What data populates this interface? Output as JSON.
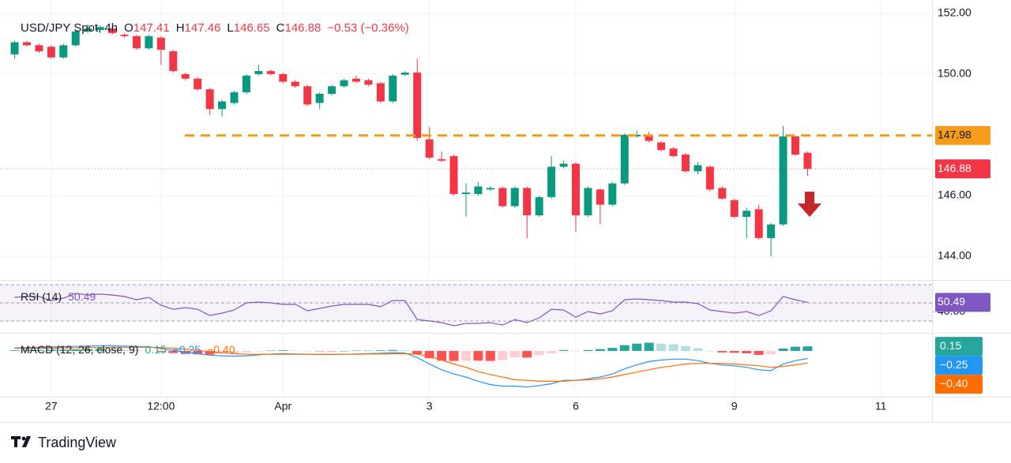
{
  "chart_data": {
    "type": "candlestick",
    "title": "USD/JPY Spot, 4h",
    "ohlc_letters": [
      "O",
      "H",
      "L",
      "C"
    ],
    "change": "−0.53 (−0.36%)",
    "x": [
      0,
      1,
      2,
      3,
      4,
      5,
      6,
      7,
      8,
      9,
      10,
      11,
      12,
      13,
      14,
      15,
      16,
      17,
      18,
      19,
      20,
      21,
      22,
      23,
      24,
      25,
      26,
      27,
      28,
      29,
      30,
      31,
      32,
      33,
      34,
      35,
      36,
      37,
      38,
      39,
      40,
      41,
      42,
      43,
      44,
      45,
      46,
      47,
      48,
      49,
      50,
      51,
      52,
      53,
      54,
      55,
      56,
      57,
      58,
      59,
      60,
      61,
      62,
      63,
      64,
      65
    ],
    "xlim": [
      -1.2,
      75.2
    ],
    "xticks": [
      {
        "value": 3,
        "label": "27"
      },
      {
        "value": 12,
        "label": "12:00"
      },
      {
        "value": 22,
        "label": "Apr"
      },
      {
        "value": 34,
        "label": "3"
      },
      {
        "value": 46,
        "label": "6"
      },
      {
        "value": 59,
        "label": "9"
      },
      {
        "value": 71,
        "label": "11"
      }
    ],
    "open": [
      150.65,
      151.05,
      150.95,
      150.9,
      150.55,
      150.95,
      151.4,
      151.45,
      151.5,
      151.3,
      151.25,
      150.85,
      151.2,
      150.75,
      150.0,
      149.85,
      149.5,
      148.85,
      149.05,
      149.4,
      150.0,
      150.1,
      150.0,
      149.75,
      149.6,
      149.05,
      149.35,
      149.6,
      149.85,
      149.8,
      149.7,
      149.1,
      149.98,
      150.05,
      147.85,
      147.2,
      147.3,
      146.05,
      146.05,
      146.2,
      146.25,
      145.65,
      146.25,
      145.35,
      145.95,
      146.95,
      147.05,
      145.35,
      146.2,
      145.7,
      146.4,
      147.95,
      148.0,
      147.75,
      147.55,
      147.35,
      146.8,
      146.95,
      146.25,
      145.85,
      145.3,
      145.55,
      144.6,
      145.05,
      147.95,
      147.41
    ],
    "high": [
      151.1,
      151.1,
      151.0,
      150.95,
      151.0,
      151.45,
      151.65,
      151.6,
      151.55,
      151.35,
      151.3,
      151.3,
      151.25,
      150.8,
      150.05,
      149.9,
      149.55,
      149.15,
      149.45,
      150.0,
      150.3,
      150.15,
      150.05,
      149.8,
      149.65,
      149.4,
      149.65,
      149.85,
      149.95,
      149.85,
      149.75,
      150.0,
      150.1,
      150.5,
      148.25,
      147.45,
      147.35,
      146.4,
      146.45,
      146.3,
      146.3,
      146.3,
      146.3,
      146.0,
      147.3,
      147.15,
      147.1,
      146.3,
      146.25,
      146.45,
      148.05,
      148.15,
      148.1,
      147.8,
      147.6,
      147.4,
      147.1,
      147.0,
      146.3,
      145.9,
      145.6,
      145.7,
      145.1,
      148.3,
      147.95,
      147.46
    ],
    "low": [
      150.5,
      150.9,
      150.7,
      150.5,
      150.5,
      150.9,
      151.35,
      151.4,
      151.3,
      151.2,
      150.8,
      150.8,
      150.3,
      150.05,
      149.8,
      149.45,
      148.65,
      148.6,
      149.0,
      149.35,
      149.95,
      149.95,
      149.7,
      149.55,
      148.95,
      148.85,
      149.3,
      149.55,
      149.7,
      149.6,
      149.05,
      149.05,
      149.95,
      147.8,
      147.2,
      147.1,
      146.0,
      145.3,
      146.0,
      146.15,
      145.6,
      145.6,
      144.6,
      145.3,
      145.9,
      146.9,
      144.8,
      145.3,
      145.05,
      145.65,
      146.35,
      147.9,
      147.75,
      147.45,
      147.25,
      146.75,
      146.7,
      146.15,
      145.85,
      145.25,
      144.6,
      144.55,
      144.0,
      145.0,
      147.3,
      146.65
    ],
    "close": [
      151.05,
      150.95,
      150.75,
      150.55,
      150.95,
      151.4,
      151.5,
      151.55,
      151.35,
      151.25,
      150.85,
      151.25,
      150.8,
      150.1,
      149.85,
      149.5,
      148.85,
      149.1,
      149.4,
      149.95,
      150.1,
      150.0,
      149.75,
      149.6,
      149.0,
      149.35,
      149.6,
      149.8,
      149.75,
      149.65,
      149.1,
      149.95,
      150.05,
      147.9,
      147.25,
      147.15,
      146.05,
      146.1,
      146.3,
      146.25,
      145.65,
      146.25,
      145.35,
      145.95,
      146.95,
      147.05,
      145.35,
      146.25,
      145.7,
      146.4,
      148.0,
      148.0,
      147.8,
      147.5,
      147.3,
      146.8,
      147.0,
      146.2,
      145.9,
      145.3,
      145.5,
      144.6,
      145.05,
      147.95,
      147.35,
      146.88
    ],
    "up_color": "#089981",
    "down_color": "#f23645",
    "ylim": [
      143.22,
      152.44
    ],
    "yticks": [
      {
        "value": 144,
        "label": "144.00"
      },
      {
        "value": 146,
        "label": "146.00"
      },
      {
        "value": 150,
        "label": "150.00"
      },
      {
        "value": 152,
        "label": "152.00"
      }
    ],
    "grid": true,
    "resistance": {
      "value": 147.98,
      "color": "#f59c1a"
    },
    "rsi": {
      "name": "RSI (14)",
      "color": "#7e57c2",
      "values": [
        56.1,
        57,
        57,
        52.6,
        55.2,
        60.4,
        58.7,
        59.6,
        58.7,
        57,
        53.5,
        56.1,
        47.4,
        43,
        44.8,
        43,
        36.1,
        38.7,
        42.2,
        50,
        50.9,
        50,
        48.3,
        48.3,
        41.3,
        43.9,
        46.5,
        48.3,
        48.3,
        48.3,
        45.7,
        52.6,
        52.6,
        31.7,
        30,
        28.3,
        24.8,
        27.4,
        27.4,
        28.3,
        25.7,
        31.7,
        28.3,
        33.5,
        43,
        42.2,
        34.3,
        40.4,
        37.8,
        41.3,
        53.5,
        54.3,
        53.5,
        52.6,
        50.9,
        50.9,
        49.1,
        42.2,
        40.4,
        38.7,
        40.4,
        36.1,
        41.3,
        57,
        53.5,
        50.49
      ],
      "ylim": [
        17,
        74.3
      ],
      "yticks": [
        {
          "value": 40,
          "label": "40.00"
        }
      ],
      "bands": [
        70,
        50,
        30
      ]
    },
    "macd": {
      "name": "MACD (12, 26, close, 9)",
      "ylim": [
        -1.51,
        0.57
      ],
      "histogram": {
        "colors": [
          "#26a69a",
          "#b2dfdb",
          "#ff5252",
          "#ffcdd2"
        ],
        "values": [
          0.02,
          0.03,
          0.03,
          0.04,
          0.04,
          0.05,
          0.05,
          0.06,
          0.05,
          0.04,
          0.03,
          0.01,
          -0.03,
          -0.07,
          -0.1,
          -0.11,
          -0.12,
          -0.1,
          -0.08,
          -0.05,
          -0.02,
          0.01,
          0.02,
          0.01,
          0,
          -0.01,
          -0.01,
          0,
          0.01,
          0.01,
          0.02,
          0.03,
          0.02,
          -0.11,
          -0.24,
          -0.32,
          -0.33,
          -0.32,
          -0.32,
          -0.33,
          -0.3,
          -0.21,
          -0.22,
          -0.14,
          -0.08,
          0.03,
          0,
          0.03,
          0.06,
          0.1,
          0.19,
          0.24,
          0.27,
          0.24,
          0.22,
          0.16,
          0.09,
          0,
          -0.05,
          -0.06,
          -0.08,
          -0.13,
          -0.11,
          0.08,
          0.14,
          0.15
        ]
      },
      "macd_line": {
        "color": "#2196f3",
        "last_label": "−0.25",
        "values": [
          0.1,
          0.11,
          0.12,
          0.13,
          0.14,
          0.15,
          0.16,
          0.17,
          0.17,
          0.16,
          0.15,
          0.13,
          0.08,
          0.02,
          -0.04,
          -0.09,
          -0.14,
          -0.16,
          -0.17,
          -0.16,
          -0.13,
          -0.1,
          -0.09,
          -0.1,
          -0.11,
          -0.12,
          -0.12,
          -0.11,
          -0.1,
          -0.09,
          -0.08,
          -0.06,
          -0.07,
          -0.22,
          -0.43,
          -0.62,
          -0.76,
          -0.86,
          -1.0,
          -1.11,
          -1.16,
          -1.16,
          -1.19,
          -1.14,
          -1.08,
          -0.97,
          -0.97,
          -0.92,
          -0.86,
          -0.76,
          -0.59,
          -0.46,
          -0.35,
          -0.3,
          -0.27,
          -0.27,
          -0.32,
          -0.41,
          -0.46,
          -0.49,
          -0.54,
          -0.62,
          -0.65,
          -0.43,
          -0.32,
          -0.25
        ]
      },
      "signal_line": {
        "color": "#ff6d00",
        "last_label": "−0.40",
        "values": [
          0.08,
          0.08,
          0.09,
          0.09,
          0.1,
          0.1,
          0.11,
          0.11,
          0.12,
          0.12,
          0.12,
          0.12,
          0.11,
          0.09,
          0.06,
          0.02,
          -0.02,
          -0.06,
          -0.09,
          -0.11,
          -0.11,
          -0.11,
          -0.11,
          -0.11,
          -0.11,
          -0.11,
          -0.11,
          -0.11,
          -0.11,
          -0.1,
          -0.1,
          -0.09,
          -0.09,
          -0.11,
          -0.19,
          -0.3,
          -0.43,
          -0.54,
          -0.68,
          -0.78,
          -0.86,
          -0.95,
          -0.97,
          -1.0,
          -1.0,
          -1.0,
          -0.97,
          -0.95,
          -0.92,
          -0.86,
          -0.78,
          -0.7,
          -0.62,
          -0.54,
          -0.49,
          -0.43,
          -0.41,
          -0.41,
          -0.41,
          -0.43,
          -0.46,
          -0.49,
          -0.54,
          -0.51,
          -0.46,
          -0.4
        ]
      }
    },
    "brand": "TradingView"
  }
}
